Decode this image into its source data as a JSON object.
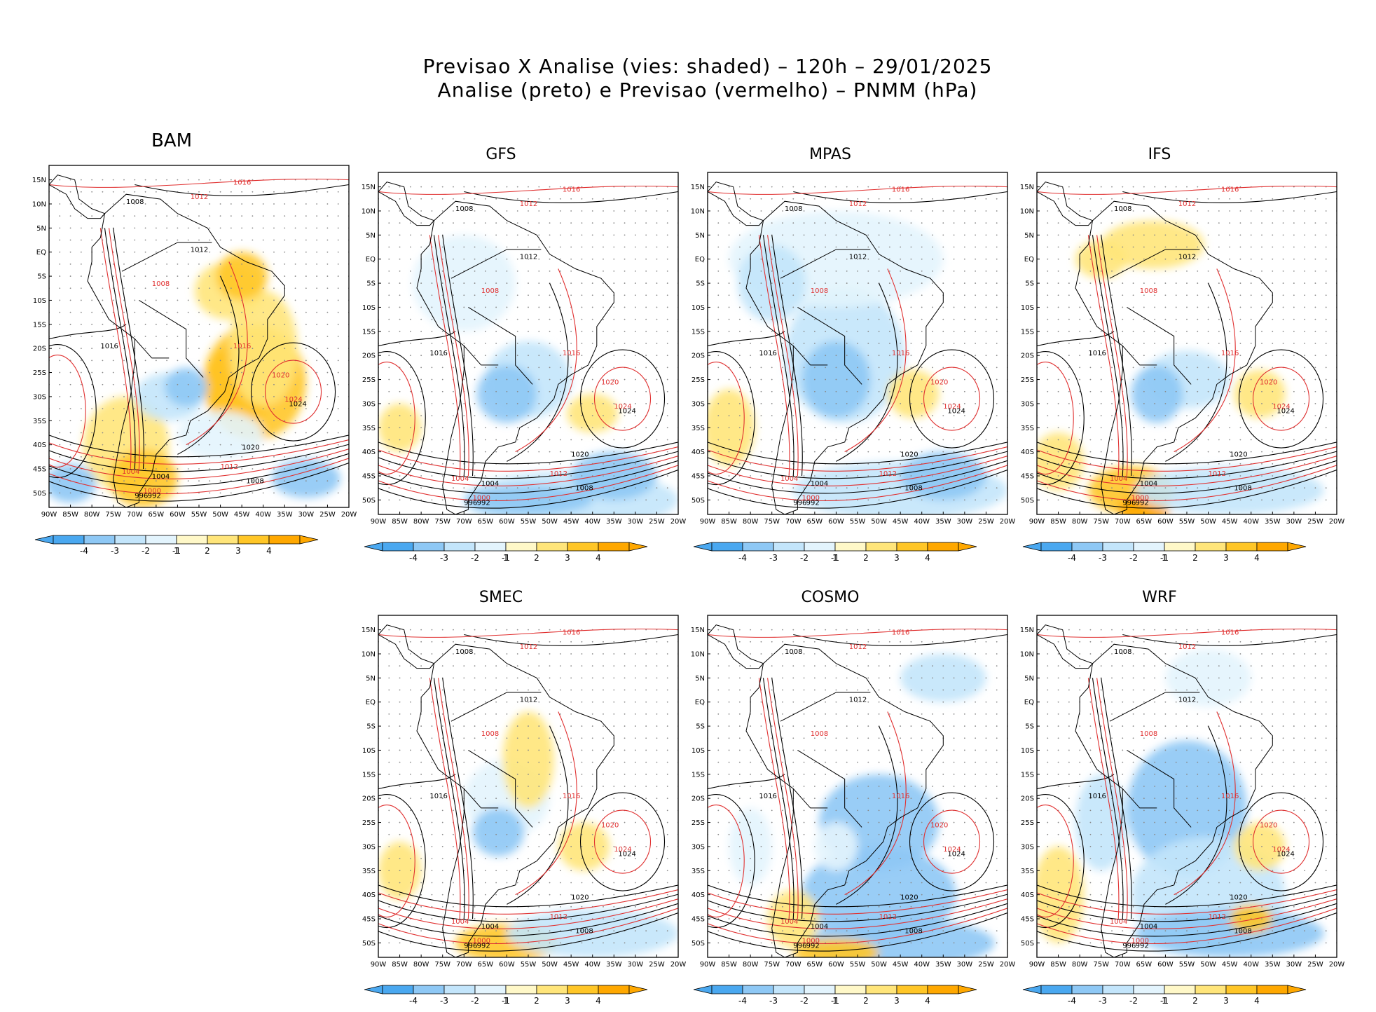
{
  "title": {
    "line1": "Previsao X Analise (vies: shaded) – 120h – 29/01/2025",
    "line2": "Analise (preto) e Previsao (vermelho) – PNMM (hPa)"
  },
  "axes": {
    "lat_labels": [
      "15N",
      "10N",
      "5N",
      "EQ",
      "5S",
      "10S",
      "15S",
      "20S",
      "25S",
      "30S",
      "35S",
      "40S",
      "45S",
      "50S"
    ],
    "lon_labels": [
      "90W",
      "85W",
      "80W",
      "75W",
      "70W",
      "65W",
      "60W",
      "55W",
      "50W",
      "45W",
      "40W",
      "35W",
      "30W",
      "25W",
      "20W"
    ]
  },
  "colorbar": {
    "ticks": [
      "-4",
      "-3",
      "-2",
      "-1",
      "1",
      "2",
      "3",
      "4"
    ]
  },
  "colors": {
    "neg4": "#4aa8f0",
    "neg3": "#8ec8f5",
    "neg2": "#c3e5fb",
    "neg1": "#e3f4fd",
    "pos1": "#fff8c8",
    "pos2": "#ffe57a",
    "pos3": "#ffc627",
    "pos4": "#ffa800",
    "analysis": "#000000",
    "forecast": "#e03030"
  },
  "panels": [
    {
      "id": "bam",
      "name": "BAM"
    },
    {
      "id": "gfs",
      "name": "GFS"
    },
    {
      "id": "mpas",
      "name": "MPAS"
    },
    {
      "id": "ifs",
      "name": "IFS"
    },
    {
      "id": "smec",
      "name": "SMEC"
    },
    {
      "id": "cosmo",
      "name": "COSMO"
    },
    {
      "id": "wrf",
      "name": "WRF"
    }
  ],
  "isobar_labels": {
    "black": [
      "1008",
      "1012",
      "1016",
      "1020",
      "1024",
      "1008",
      "1004",
      "992",
      "996"
    ],
    "red": [
      "1012",
      "1016",
      "1020",
      "1024",
      "1008",
      "1004",
      "1000",
      "1016",
      "1012"
    ]
  }
}
